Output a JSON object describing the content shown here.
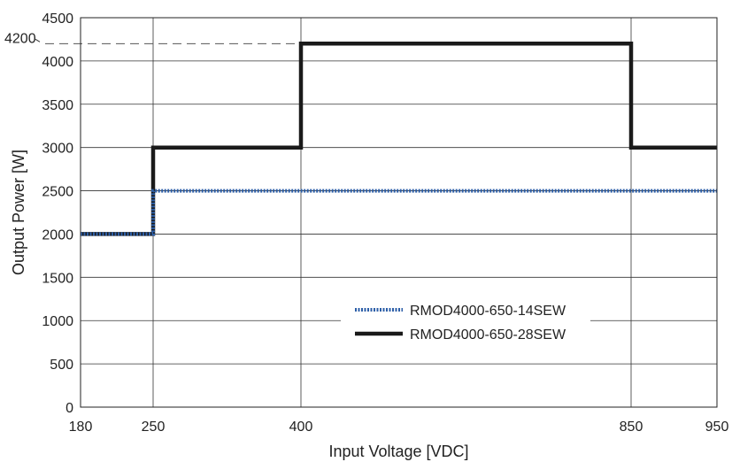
{
  "chart_data": {
    "type": "line",
    "title": "",
    "xlabel": "Input Voltage [VDC]",
    "ylabel": "Output Power [W]",
    "x_ticks": [
      180,
      250,
      400,
      850,
      950
    ],
    "y_ticks": [
      0,
      500,
      1000,
      1500,
      2000,
      2500,
      3000,
      3500,
      4000,
      4500
    ],
    "xlim": [
      180,
      950
    ],
    "ylim": [
      0,
      4500
    ],
    "grid": true,
    "legend_position": "center-right",
    "annotation": {
      "label": "4200",
      "y": 4200,
      "x_end": 400
    },
    "series": [
      {
        "name": "RMOD4000-650-14SEW",
        "style": "dotted",
        "color": "#2d5fa8",
        "points": [
          [
            180,
            2000
          ],
          [
            250,
            2000
          ],
          [
            250,
            2500
          ],
          [
            950,
            2500
          ]
        ]
      },
      {
        "name": "RMOD4000-650-28SEW",
        "style": "solid",
        "color": "#1a1a1a",
        "points": [
          [
            180,
            2000
          ],
          [
            250,
            2000
          ],
          [
            250,
            3000
          ],
          [
            400,
            3000
          ],
          [
            400,
            4200
          ],
          [
            850,
            4200
          ],
          [
            850,
            3000
          ],
          [
            950,
            3000
          ]
        ]
      }
    ]
  }
}
